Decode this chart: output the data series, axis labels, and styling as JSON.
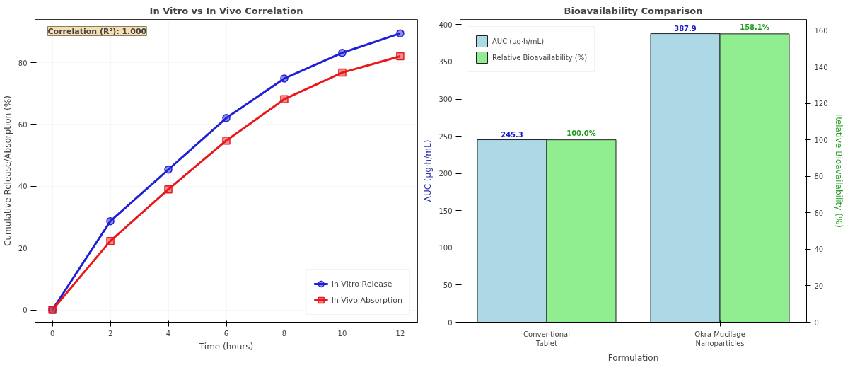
{
  "chart_data": [
    {
      "type": "line",
      "title": "In Vitro vs In Vivo Correlation",
      "xlabel": "Time (hours)",
      "ylabel": "Cumulative Release/Absorption (%)",
      "x": [
        0,
        2,
        4,
        6,
        8,
        10,
        12
      ],
      "series": [
        {
          "name": "In Vitro Release",
          "color": "#1f1fd6",
          "marker": "circle",
          "values": [
            0,
            28.7,
            45.4,
            62.1,
            74.9,
            83.2,
            89.5
          ]
        },
        {
          "name": "In Vivo Absorption",
          "color": "#e8181c",
          "marker": "square",
          "values": [
            0,
            22.3,
            39.0,
            54.8,
            68.2,
            76.8,
            82.1
          ]
        }
      ],
      "xlim": [
        -0.6,
        12.6
      ],
      "xticks": [
        0,
        2,
        4,
        6,
        8,
        10,
        12
      ],
      "ylim": [
        -4,
        94
      ],
      "yticks": [
        0,
        20,
        40,
        60,
        80
      ],
      "grid": true,
      "legend": "bottom right",
      "line_style": "solid",
      "annotations": [
        "Correlation (R²): 1.000"
      ]
    },
    {
      "type": "bar",
      "title": "Bioavailability Comparison",
      "xlabel": "Formulation",
      "ylabel": "AUC (μg·h/mL)",
      "y2label": "Relative Bioavailability (%)",
      "categories": [
        "Conventional\nTablet",
        "Okra Mucilage\nNanoparticles"
      ],
      "series": [
        {
          "name": "AUC (μg·h/mL)",
          "color": "#add8e6",
          "values": [
            245.3,
            387.9
          ],
          "value_labels": [
            "245.3",
            "387.9"
          ]
        },
        {
          "name": "Relative Bioavailability (%)",
          "color": "#90ee90",
          "axis": "y2",
          "values": [
            100.0,
            158.1
          ],
          "value_labels": [
            "100.0%",
            "158.1%"
          ]
        }
      ],
      "ylim": [
        0,
        407
      ],
      "yticks": [
        0,
        50,
        100,
        150,
        200,
        250,
        300,
        350,
        400
      ],
      "y2lim": [
        0,
        166
      ],
      "y2ticks": [
        0,
        20,
        40,
        60,
        80,
        100,
        120,
        140,
        160
      ],
      "grid": false,
      "legend": "top left"
    }
  ]
}
